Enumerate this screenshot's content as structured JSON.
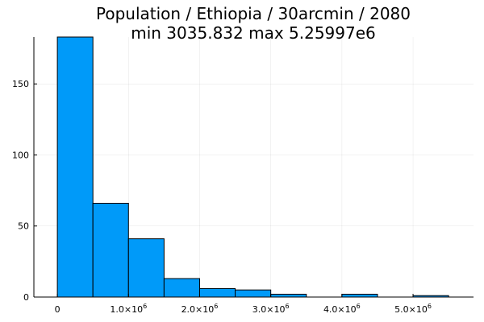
{
  "chart_data": {
    "type": "bar",
    "title": "Population / Ethiopia / 30arcmin / 2080",
    "subtitle": "min 3035.832  max 5.25997e6",
    "xlabel": "",
    "ylabel": "",
    "bin_edges": [
      0,
      500000,
      1000000,
      1500000,
      2000000,
      2500000,
      3000000,
      3500000,
      4000000,
      4500000,
      5000000,
      5500000
    ],
    "values": [
      183,
      66,
      41,
      13,
      6,
      5,
      2,
      0,
      2,
      0,
      1
    ],
    "xlim": [
      -330000,
      5850000
    ],
    "ylim": [
      0,
      183
    ],
    "x_ticks": [
      {
        "value": 0,
        "mantissa": "0",
        "exponent": ""
      },
      {
        "value": 1000000,
        "mantissa": "1.0×10",
        "exponent": "6"
      },
      {
        "value": 2000000,
        "mantissa": "2.0×10",
        "exponent": "6"
      },
      {
        "value": 3000000,
        "mantissa": "3.0×10",
        "exponent": "6"
      },
      {
        "value": 4000000,
        "mantissa": "4.0×10",
        "exponent": "6"
      },
      {
        "value": 5000000,
        "mantissa": "5.0×10",
        "exponent": "6"
      }
    ],
    "y_ticks": [
      {
        "value": 0,
        "label": "0"
      },
      {
        "value": 50,
        "label": "50"
      },
      {
        "value": 100,
        "label": "100"
      },
      {
        "value": 150,
        "label": "150"
      }
    ],
    "grid": true,
    "legend": "none",
    "bar_color": "#009af9",
    "edge_color": "#000000"
  }
}
